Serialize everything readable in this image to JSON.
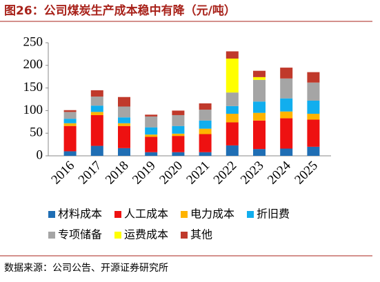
{
  "chart_data": {
    "type": "bar",
    "stacked": true,
    "title": "图26：公司煤炭生产成本稳中有降（元/吨）",
    "source": "数据来源：公司公告、开源证券研究所",
    "categories": [
      "2016",
      "2017",
      "2018",
      "2019",
      "2020",
      "2021",
      "2022",
      "2023",
      "2024",
      "2025"
    ],
    "series": [
      {
        "name": "材料成本",
        "color": "#1f6eb4",
        "values": [
          10,
          22,
          17,
          8,
          8,
          8,
          23,
          15,
          16,
          20
        ]
      },
      {
        "name": "人工成本",
        "color": "#ee1111",
        "values": [
          56,
          68,
          49,
          34,
          36,
          40,
          51,
          63,
          67,
          60
        ]
      },
      {
        "name": "电力成本",
        "color": "#ffb400",
        "values": [
          6,
          7,
          6,
          5,
          5,
          12,
          19,
          17,
          15,
          13
        ]
      },
      {
        "name": "折旧费",
        "color": "#11aeee",
        "values": [
          10,
          14,
          13,
          16,
          17,
          18,
          17,
          25,
          29,
          29
        ]
      },
      {
        "name": "专项储备",
        "color": "#a5a5a5",
        "values": [
          15,
          20,
          24,
          24,
          24,
          24,
          30,
          48,
          44,
          40
        ]
      },
      {
        "name": "运费成本",
        "color": "#ffff00",
        "values": [
          0,
          0,
          0,
          0,
          0,
          0,
          75,
          6,
          0,
          0
        ]
      },
      {
        "name": "其他",
        "color": "#c0392b",
        "values": [
          4,
          14,
          21,
          4,
          10,
          14,
          16,
          14,
          24,
          23
        ]
      }
    ],
    "ylim": [
      0,
      250
    ],
    "yticks": [
      0,
      50,
      100,
      150,
      200,
      250
    ]
  }
}
